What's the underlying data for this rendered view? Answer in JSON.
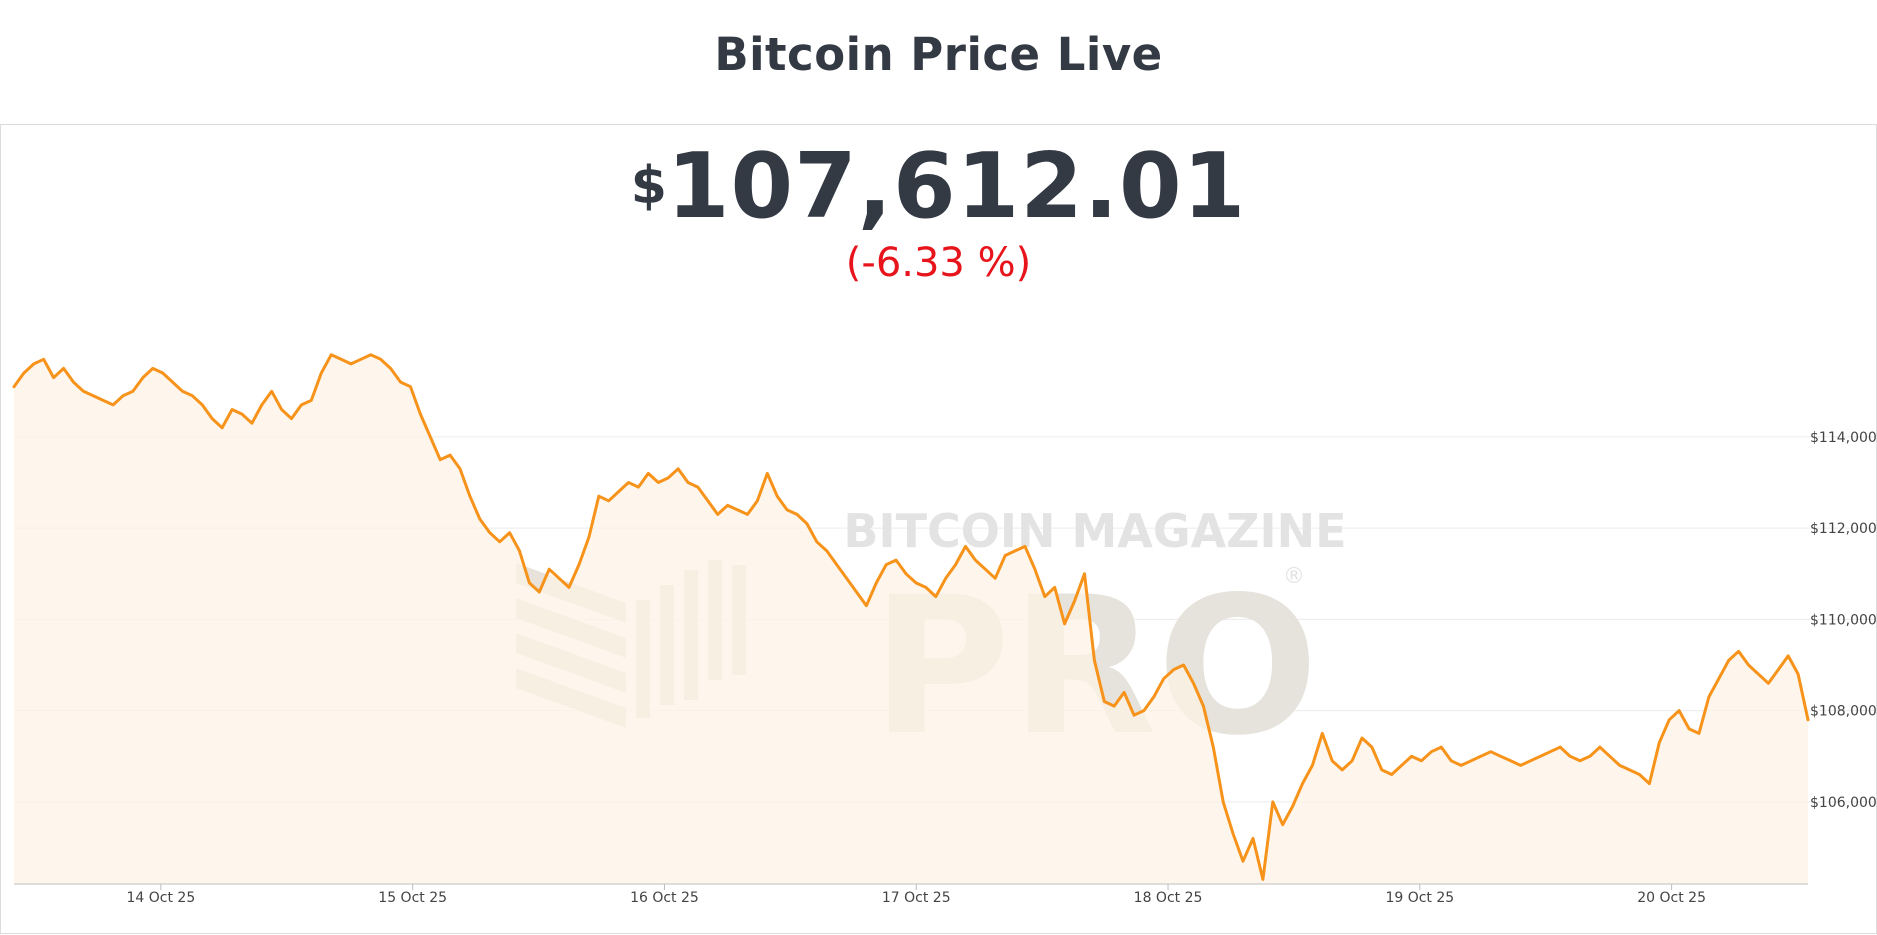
{
  "page": {
    "title": "Bitcoin Price Live"
  },
  "ticker": {
    "currency_symbol": "$",
    "price": "107,612.01",
    "change": "(-6.33 %)"
  },
  "watermark": {
    "brand_line": "BITCOIN MAGAZINE",
    "product": "PRO",
    "registered_mark": "®"
  },
  "colors": {
    "line": "#f7931a",
    "fill": "#fdf3e6",
    "text": "#333a44",
    "change_negative": "#e8141c",
    "grid": "#ececec"
  },
  "chart_data": {
    "type": "area",
    "x_start": "2025-10-13 10:00",
    "x_end": "2025-10-20 13:00",
    "x_ticks": [
      "14 Oct 25",
      "15 Oct 25",
      "16 Oct 25",
      "17 Oct 25",
      "18 Oct 25",
      "19 Oct 25",
      "20 Oct 25"
    ],
    "y_ticks": [
      "$106,000",
      "$108,000",
      "$110,000",
      "$112,000",
      "$114,000"
    ],
    "y_tick_values": [
      106000,
      108000,
      110000,
      112000,
      114000
    ],
    "ylim": [
      104200,
      117000
    ],
    "y_axis_position": "right",
    "grid": true,
    "series": [
      {
        "values": [
          115100,
          115400,
          115600,
          115700,
          115300,
          115500,
          115200,
          115000,
          114900,
          114800,
          114700,
          114900,
          115000,
          115300,
          115500,
          115400,
          115200,
          115000,
          114900,
          114700,
          114400,
          114200,
          114600,
          114500,
          114300,
          114700,
          115000,
          114600,
          114400,
          114700,
          114800,
          115400,
          115800,
          115700,
          115600,
          115700,
          115800,
          115700,
          115500,
          115200,
          115100,
          114500,
          114000,
          113500,
          113600,
          113300,
          112700,
          112200,
          111900,
          111700,
          111900,
          111500,
          110800,
          110600,
          111100,
          110900,
          110700,
          111200,
          111800,
          112700,
          112600,
          112800,
          113000,
          112900,
          113200,
          113000,
          113100,
          113300,
          113000,
          112900,
          112600,
          112300,
          112500,
          112400,
          112300,
          112600,
          113200,
          112700,
          112400,
          112300,
          112100,
          111700,
          111500,
          111200,
          110900,
          110600,
          110300,
          110800,
          111200,
          111300,
          111000,
          110800,
          110700,
          110500,
          110900,
          111200,
          111600,
          111300,
          111100,
          110900,
          111400,
          111500,
          111600,
          111100,
          110500,
          110700,
          109900,
          110400,
          111000,
          109100,
          108200,
          108100,
          108400,
          107900,
          108000,
          108300,
          108700,
          108900,
          109000,
          108600,
          108100,
          107200,
          106000,
          105300,
          104700,
          105200,
          104300,
          106000,
          105500,
          105900,
          106400,
          106800,
          107500,
          106900,
          106700,
          106900,
          107400,
          107200,
          106700,
          106600,
          106800,
          107000,
          106900,
          107100,
          107200,
          106900,
          106800,
          106900,
          107000,
          107100,
          107000,
          106900,
          106800,
          106900,
          107000,
          107100,
          107200,
          107000,
          106900,
          107000,
          107200,
          107000,
          106800,
          106700,
          106600,
          106400,
          107300,
          107800,
          108000,
          107600,
          107500,
          108300,
          108700,
          109100,
          109300,
          109000,
          108800,
          108600,
          108900,
          109200,
          108800,
          107800
        ]
      }
    ]
  }
}
